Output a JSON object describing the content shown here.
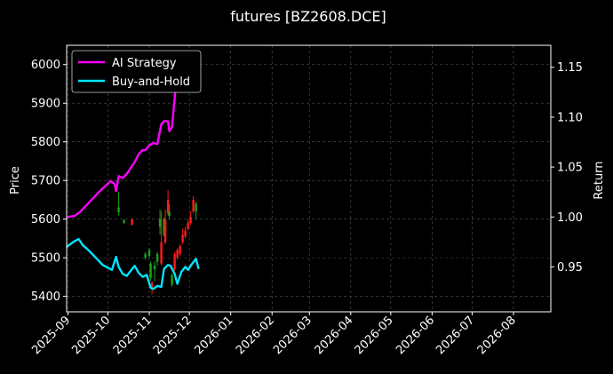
{
  "chart_data": {
    "type": "line",
    "title": "futures [BZ2608.DCE]",
    "xlabel": "",
    "ylabel_left": "Price",
    "ylabel_right": "Return",
    "x_ticks": [
      "2025-09",
      "2025-10",
      "2025-11",
      "2025-12",
      "2026-01",
      "2026-02",
      "2026-03",
      "2026-04",
      "2026-05",
      "2026-06",
      "2026-07",
      "2026-08"
    ],
    "xlim": [
      "2025-08-31",
      "2026-08-29"
    ],
    "ylim_left": [
      5360,
      6050
    ],
    "yticks_left": [
      5400,
      5500,
      5600,
      5700,
      5800,
      5900,
      6000
    ],
    "ylim_right": [
      0.905,
      1.172
    ],
    "yticks_right": [
      "0.95",
      "1.00",
      "1.05",
      "1.10",
      "1.15"
    ],
    "grid": true,
    "legend_position": "top-left",
    "legend": [
      {
        "label": "AI Strategy",
        "color": "#ff00ff"
      },
      {
        "label": "Buy-and-Hold",
        "color": "#00e5ff"
      }
    ],
    "series": [
      {
        "name": "AI Strategy",
        "axis": "right",
        "color": "#ff00ff",
        "points": [
          [
            "2025-08-31",
            1.0
          ],
          [
            "2025-09-06",
            1.001
          ],
          [
            "2025-09-10",
            1.005
          ],
          [
            "2025-09-15",
            1.012
          ],
          [
            "2025-09-20",
            1.019
          ],
          [
            "2025-09-25",
            1.026
          ],
          [
            "2025-09-29",
            1.031
          ],
          [
            "2025-10-03",
            1.036
          ],
          [
            "2025-10-06",
            1.033
          ],
          [
            "2025-10-07",
            1.026
          ],
          [
            "2025-10-09",
            1.041
          ],
          [
            "2025-10-12",
            1.039
          ],
          [
            "2025-10-15",
            1.043
          ],
          [
            "2025-10-18",
            1.049
          ],
          [
            "2025-10-21",
            1.055
          ],
          [
            "2025-10-24",
            1.063
          ],
          [
            "2025-10-27",
            1.067
          ],
          [
            "2025-10-29",
            1.067
          ],
          [
            "2025-11-01",
            1.072
          ],
          [
            "2025-11-04",
            1.074
          ],
          [
            "2025-11-07",
            1.073
          ],
          [
            "2025-11-10",
            1.093
          ],
          [
            "2025-11-12",
            1.096
          ],
          [
            "2025-11-15",
            1.096
          ],
          [
            "2025-11-16",
            1.086
          ],
          [
            "2025-11-18",
            1.09
          ],
          [
            "2025-11-21",
            1.133
          ],
          [
            "2025-11-24",
            1.148
          ],
          [
            "2025-11-27",
            1.152
          ],
          [
            "2025-11-30",
            1.156
          ],
          [
            "2025-12-03",
            1.159
          ],
          [
            "2025-12-06",
            1.162
          ],
          [
            "2025-12-08",
            1.161
          ]
        ]
      },
      {
        "name": "Buy-and-Hold",
        "axis": "right",
        "color": "#00e5ff",
        "points": [
          [
            "2025-08-31",
            0.97
          ],
          [
            "2025-09-05",
            0.975
          ],
          [
            "2025-09-09",
            0.978
          ],
          [
            "2025-09-12",
            0.972
          ],
          [
            "2025-09-17",
            0.966
          ],
          [
            "2025-09-22",
            0.959
          ],
          [
            "2025-09-27",
            0.952
          ],
          [
            "2025-10-04",
            0.947
          ],
          [
            "2025-10-07",
            0.96
          ],
          [
            "2025-10-09",
            0.95
          ],
          [
            "2025-10-12",
            0.943
          ],
          [
            "2025-10-15",
            0.941
          ],
          [
            "2025-10-18",
            0.946
          ],
          [
            "2025-10-21",
            0.951
          ],
          [
            "2025-10-24",
            0.944
          ],
          [
            "2025-10-27",
            0.94
          ],
          [
            "2025-10-30",
            0.942
          ],
          [
            "2025-11-02",
            0.929
          ],
          [
            "2025-11-04",
            0.928
          ],
          [
            "2025-11-07",
            0.931
          ],
          [
            "2025-11-10",
            0.93
          ],
          [
            "2025-11-12",
            0.948
          ],
          [
            "2025-11-15",
            0.952
          ],
          [
            "2025-11-17",
            0.951
          ],
          [
            "2025-11-20",
            0.943
          ],
          [
            "2025-11-22",
            0.933
          ],
          [
            "2025-11-25",
            0.945
          ],
          [
            "2025-11-28",
            0.95
          ],
          [
            "2025-11-30",
            0.947
          ],
          [
            "2025-12-03",
            0.953
          ],
          [
            "2025-12-06",
            0.958
          ],
          [
            "2025-12-08",
            0.948
          ]
        ]
      }
    ],
    "candles": [
      {
        "date": "2025-10-09",
        "open": 5630,
        "close": 5618,
        "high": 5670,
        "low": 5610,
        "color": "green"
      },
      {
        "date": "2025-10-13",
        "open": 5598,
        "close": 5590,
        "high": 5600,
        "low": 5588,
        "color": "green"
      },
      {
        "date": "2025-10-19",
        "open": 5585,
        "close": 5600,
        "high": 5602,
        "low": 5584,
        "color": "red"
      },
      {
        "date": "2025-10-29",
        "open": 5510,
        "close": 5500,
        "high": 5515,
        "low": 5495,
        "color": "green"
      },
      {
        "date": "2025-11-01",
        "open": 5520,
        "close": 5505,
        "high": 5525,
        "low": 5500,
        "color": "green"
      },
      {
        "date": "2025-11-02",
        "open": 5485,
        "close": 5448,
        "high": 5490,
        "low": 5440,
        "color": "green"
      },
      {
        "date": "2025-11-03",
        "open": 5435,
        "close": 5420,
        "high": 5440,
        "low": 5405,
        "color": "red"
      },
      {
        "date": "2025-11-05",
        "open": 5480,
        "close": 5470,
        "high": 5490,
        "low": 5440,
        "color": "green"
      },
      {
        "date": "2025-11-07",
        "open": 5510,
        "close": 5490,
        "high": 5515,
        "low": 5480,
        "color": "green"
      },
      {
        "date": "2025-11-09",
        "open": 5600,
        "close": 5580,
        "high": 5625,
        "low": 5560,
        "color": "green"
      },
      {
        "date": "2025-11-10",
        "open": 5485,
        "close": 5540,
        "high": 5620,
        "low": 5480,
        "color": "red"
      },
      {
        "date": "2025-11-12",
        "open": 5600,
        "close": 5560,
        "high": 5605,
        "low": 5555,
        "color": "green"
      },
      {
        "date": "2025-11-13",
        "open": 5540,
        "close": 5600,
        "high": 5625,
        "low": 5535,
        "color": "red"
      },
      {
        "date": "2025-11-15",
        "open": 5615,
        "close": 5650,
        "high": 5675,
        "low": 5610,
        "color": "red"
      },
      {
        "date": "2025-11-16",
        "open": 5620,
        "close": 5608,
        "high": 5640,
        "low": 5600,
        "color": "green"
      },
      {
        "date": "2025-11-18",
        "open": 5430,
        "close": 5455,
        "high": 5460,
        "low": 5425,
        "color": "green"
      },
      {
        "date": "2025-11-20",
        "open": 5470,
        "close": 5510,
        "high": 5515,
        "low": 5465,
        "color": "red"
      },
      {
        "date": "2025-11-22",
        "open": 5500,
        "close": 5520,
        "high": 5525,
        "low": 5495,
        "color": "red"
      },
      {
        "date": "2025-11-24",
        "open": 5510,
        "close": 5530,
        "high": 5535,
        "low": 5505,
        "color": "red"
      },
      {
        "date": "2025-11-26",
        "open": 5540,
        "close": 5560,
        "high": 5575,
        "low": 5535,
        "color": "red"
      },
      {
        "date": "2025-11-28",
        "open": 5555,
        "close": 5570,
        "high": 5580,
        "low": 5550,
        "color": "red"
      },
      {
        "date": "2025-11-30",
        "open": 5575,
        "close": 5590,
        "high": 5600,
        "low": 5570,
        "color": "red"
      },
      {
        "date": "2025-12-02",
        "open": 5590,
        "close": 5605,
        "high": 5620,
        "low": 5585,
        "color": "red"
      },
      {
        "date": "2025-12-04",
        "open": 5620,
        "close": 5650,
        "high": 5660,
        "low": 5615,
        "color": "red"
      },
      {
        "date": "2025-12-06",
        "open": 5620,
        "close": 5640,
        "high": 5645,
        "low": 5600,
        "color": "green"
      }
    ]
  }
}
